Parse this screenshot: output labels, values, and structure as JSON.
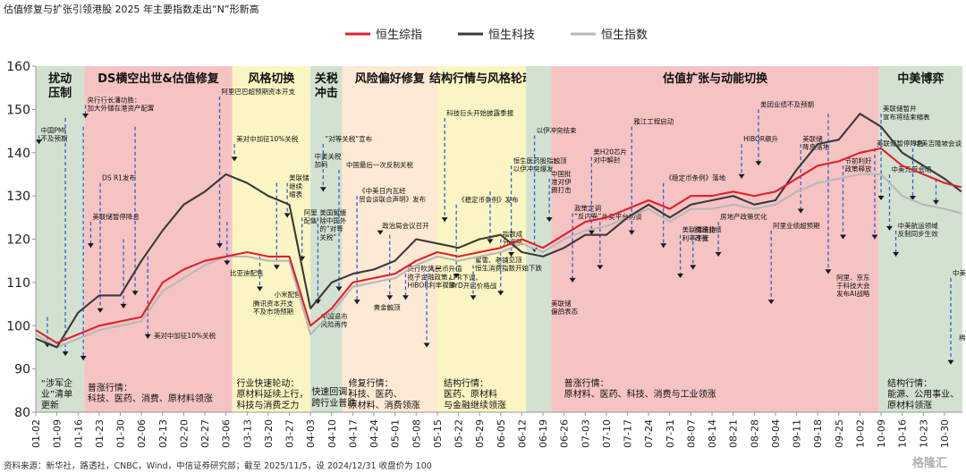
{
  "title": "估值修复与扩张引领港股 2025 年主要指数走出“N”形新高",
  "source": "资料来源：新华社，路透社，CNBC，Wind，中信证券研究部；截至 2025/11/5，设 2024/12/31 收盘价为 100",
  "watermark": "格隆汇",
  "chart_data": {
    "type": "line",
    "ylim": [
      80,
      160
    ],
    "yticks": [
      80,
      90,
      100,
      110,
      120,
      130,
      140,
      150,
      160
    ],
    "xtick_labels": [
      "01-02",
      "01-09",
      "01-16",
      "01-23",
      "01-30",
      "02-06",
      "02-13",
      "02-20",
      "02-27",
      "03-06",
      "03-13",
      "03-20",
      "03-27",
      "04-03",
      "04-10",
      "04-17",
      "04-24",
      "05-01",
      "05-08",
      "05-15",
      "05-22",
      "05-29",
      "06-05",
      "06-12",
      "06-19",
      "06-26",
      "07-03",
      "07-10",
      "07-17",
      "07-24",
      "07-31",
      "08-07",
      "08-14",
      "08-21",
      "08-28",
      "09-04",
      "09-11",
      "09-18",
      "09-25",
      "10-02",
      "10-09",
      "10-16",
      "10-23",
      "10-30"
    ],
    "x_range": [
      0,
      43.85
    ],
    "series": [
      {
        "name": "恒生综指",
        "color": "#e02030",
        "x": [
          0,
          1,
          2,
          3,
          4,
          5,
          6,
          7,
          8,
          9,
          10,
          11,
          12,
          13,
          14,
          15,
          16,
          17,
          18,
          19,
          20,
          21,
          22,
          23,
          24,
          25,
          26,
          27,
          28,
          29,
          30,
          31,
          32,
          33,
          34,
          35,
          36,
          37,
          38,
          39,
          40,
          41,
          42,
          43,
          43.8
        ],
        "values": [
          99,
          96,
          98,
          100,
          101,
          102,
          110,
          113,
          115,
          116,
          117,
          116,
          116,
          100,
          104,
          110,
          111,
          112,
          115,
          117,
          116,
          117,
          118,
          120,
          118,
          121,
          124,
          125,
          127,
          129,
          127,
          130,
          130,
          131,
          130,
          131,
          134,
          137,
          138,
          140,
          141,
          137,
          135,
          133,
          132
        ]
      },
      {
        "name": "恒生科技",
        "color": "#3a3a3a",
        "x": [
          0,
          1,
          2,
          3,
          4,
          5,
          6,
          7,
          8,
          9,
          10,
          11,
          12,
          13,
          14,
          15,
          16,
          17,
          18,
          19,
          20,
          21,
          22,
          23,
          24,
          25,
          26,
          27,
          28,
          29,
          30,
          31,
          32,
          33,
          34,
          35,
          36,
          37,
          38,
          39,
          40,
          41,
          42,
          43,
          43.8
        ],
        "values": [
          97,
          95,
          103,
          107,
          107,
          115,
          122,
          128,
          131,
          135,
          133,
          130,
          128,
          104,
          110,
          112,
          113,
          115,
          120,
          119,
          118,
          120,
          121,
          117,
          116,
          118,
          121,
          121,
          125,
          128,
          125,
          128,
          129,
          130,
          128,
          129,
          136,
          142,
          143,
          149,
          146,
          140,
          137,
          134,
          131
        ]
      },
      {
        "name": "恒生指数",
        "color": "#b8b8b8",
        "x": [
          0,
          1,
          2,
          3,
          4,
          5,
          6,
          7,
          8,
          9,
          10,
          11,
          12,
          13,
          14,
          15,
          16,
          17,
          18,
          19,
          20,
          21,
          22,
          23,
          24,
          25,
          26,
          27,
          28,
          29,
          30,
          31,
          32,
          33,
          34,
          35,
          36,
          37,
          38,
          39,
          40,
          41,
          42,
          43,
          43.8
        ],
        "values": [
          98,
          95,
          97,
          99,
          100,
          101,
          108,
          111,
          114,
          116,
          116,
          115,
          115,
          98,
          103,
          109,
          110,
          111,
          114,
          116,
          115,
          116,
          117,
          119,
          117,
          120,
          122,
          123,
          125,
          127,
          124,
          127,
          127,
          128,
          127,
          128,
          131,
          133,
          134,
          135,
          135,
          130,
          128,
          127,
          126
        ]
      }
    ],
    "phases": [
      {
        "label": "扰动\n压制",
        "start": 0,
        "end": 2.3,
        "color": "#d3e2d0"
      },
      {
        "label": "DS横空出世&估值修复",
        "start": 2.3,
        "end": 9.3,
        "color": "#f6c3c3"
      },
      {
        "label": "风格切换",
        "start": 9.3,
        "end": 13.0,
        "color": "#fbf5c3"
      },
      {
        "label": "关税\n冲击",
        "start": 13.0,
        "end": 14.5,
        "color": "#d3e2d0"
      },
      {
        "label": "风险偏好修复",
        "start": 14.5,
        "end": 19.0,
        "color": "#fde9d4"
      },
      {
        "label": "结构行情与风格轮动",
        "start": 19.0,
        "end": 23.2,
        "color": "#fbf5c3"
      },
      {
        "label": "",
        "start": 23.2,
        "end": 24.4,
        "color": "#d3e2d0"
      },
      {
        "label": "估值扩张与动能切换",
        "start": 24.4,
        "end": 39.9,
        "color": "#f6c3c3"
      },
      {
        "label": "中美博弈",
        "start": 39.9,
        "end": 43.85,
        "color": "#d3e2d0"
      }
    ],
    "events": [
      {
        "x": 0.15,
        "y0": 142,
        "y1": 144,
        "text": "中国PMI\n不及预期"
      },
      {
        "x": 0.55,
        "y0": 95,
        "y1": 102,
        "text": ""
      },
      {
        "x": 1.4,
        "y0": 93,
        "y1": 148,
        "text": ""
      },
      {
        "x": 2.25,
        "y0": 92,
        "y1": 146,
        "text": ""
      },
      {
        "x": 2.35,
        "y0": 148,
        "y1": 151,
        "text": "央行行长潘功胜：\n加大外储在港资产配置"
      },
      {
        "x": 3.05,
        "y0": 103,
        "y1": 133,
        "text": "DS R1发布"
      },
      {
        "x": 2.6,
        "y0": 118,
        "y1": 124,
        "text": "美联储暂停降息"
      },
      {
        "x": 4.15,
        "y0": 104,
        "y1": 120,
        "text": ""
      },
      {
        "x": 4.7,
        "y0": 107,
        "y1": 146,
        "text": ""
      },
      {
        "x": 5.3,
        "y0": 97,
        "y1": 116,
        "text": ""
      },
      {
        "x": 5.5,
        "y0": 96.5,
        "y1": 96.5,
        "text": "美对中加征10%关税"
      },
      {
        "x": 8.7,
        "y0": 118,
        "y1": 153,
        "text": "阿里巴巴超预期资本开支"
      },
      {
        "x": 9.05,
        "y0": 114,
        "y1": 124,
        "text": ""
      },
      {
        "x": 9.1,
        "y0": 111,
        "y1": 111,
        "text": "比亚迪配售"
      },
      {
        "x": 9.4,
        "y0": 138,
        "y1": 142,
        "text": "美对中加征10%关税"
      },
      {
        "x": 10.6,
        "y0": 108,
        "y1": 116,
        "text": ""
      },
      {
        "x": 10.2,
        "y0": 104,
        "y1": 104,
        "text": "腾讯资本开支\n不及市场预期"
      },
      {
        "x": 11.4,
        "y0": 113,
        "y1": 133,
        "text": ""
      },
      {
        "x": 11.2,
        "y0": 106,
        "y1": 106,
        "text": "小米配售"
      },
      {
        "x": 11.9,
        "y0": 125,
        "y1": 133,
        "text": "美联储\n继续\n缩表"
      },
      {
        "x": 12.6,
        "y0": 115,
        "y1": 125,
        "text": "阿里\n配售"
      },
      {
        "x": 13.6,
        "y0": 131,
        "y1": 142,
        "text": "“对等关税”宣布"
      },
      {
        "x": 13.35,
        "y0": 105,
        "y1": 125,
        "text": "美国暂缓\n除中国外\n的“对等\n关税”"
      },
      {
        "x": 13.1,
        "y0": 138,
        "y1": 138,
        "text": "中美关税\n加码"
      },
      {
        "x": 13.4,
        "y0": 101,
        "y1": 101,
        "text": "中国退市\n风险再传"
      },
      {
        "x": 14.35,
        "y0": 108,
        "y1": 136,
        "text": ""
      },
      {
        "x": 14.6,
        "y0": 136,
        "y1": 136,
        "text": "中国最后一次反制关税"
      },
      {
        "x": 15.2,
        "y0": 105,
        "y1": 130,
        "text": "《中美日内瓦经\n贸会谈联合声明》发布"
      },
      {
        "x": 16.3,
        "y0": 121,
        "y1": 122,
        "text": "政治局会议召开"
      },
      {
        "x": 16.75,
        "y0": 106,
        "y1": 121,
        "text": ""
      },
      {
        "x": 15.9,
        "y0": 103,
        "y1": 103,
        "text": "黄金触顶"
      },
      {
        "x": 17.5,
        "y0": 106,
        "y1": 112,
        "text": "央行吹风一\n揽子金融政策，\nHIBOR利率骤降"
      },
      {
        "x": 18.5,
        "y0": 95,
        "y1": 112,
        "text": "人民币升值"
      },
      {
        "x": 19.35,
        "y0": 124,
        "y1": 148,
        "text": "科技巨头开始披露季报"
      },
      {
        "x": 19.9,
        "y0": 111,
        "y1": 128,
        "text": "《稳定币条例》发布"
      },
      {
        "x": 19.5,
        "y0": 110,
        "y1": 110,
        "text": "LPR下调、\nBYD开启价格战"
      },
      {
        "x": 20.7,
        "y0": 106,
        "y1": 114,
        "text": "蜜雪、老铺见顶\n恒生消费指数开始下跌"
      },
      {
        "x": 21.5,
        "y0": 119,
        "y1": 131,
        "text": ""
      },
      {
        "x": 22.5,
        "y0": 116,
        "y1": 137,
        "text": "恒生医药股指触顶\n以伊冲突爆发"
      },
      {
        "x": 22.0,
        "y0": 107,
        "y1": 120,
        "text": "指数成\n分调整"
      },
      {
        "x": 23.6,
        "y0": 117,
        "y1": 144,
        "text": "以伊冲突结束"
      },
      {
        "x": 24.3,
        "y0": 124,
        "y1": 134,
        "text": "中国批\n准对伊\n朗打击"
      },
      {
        "x": 24.3,
        "y0": 104,
        "y1": 104,
        "text": "美联储\n偏鸽表态"
      },
      {
        "x": 25.4,
        "y0": 110,
        "y1": 126,
        "text": "政策定调\n“反内卷”"
      },
      {
        "x": 26.3,
        "y0": 121,
        "y1": 139,
        "text": "美H20芯片\n对中解封"
      },
      {
        "x": 26.7,
        "y0": 113,
        "y1": 124,
        "text": "外卖平台约谈"
      },
      {
        "x": 28.2,
        "y0": 121,
        "y1": 146,
        "text": "雅江工程启动"
      },
      {
        "x": 29.7,
        "y0": 118,
        "y1": 133,
        "text": "《稳定币条例》落地"
      },
      {
        "x": 30.5,
        "y0": 111,
        "y1": 121,
        "text": "美联储维持\n利率不变"
      },
      {
        "x": 31.1,
        "y0": 113,
        "y1": 121,
        "text": "腾讯业绩\n改善"
      },
      {
        "x": 32.3,
        "y0": 116,
        "y1": 124,
        "text": "房地产政策优化"
      },
      {
        "x": 33.4,
        "y0": 134,
        "y1": 142,
        "text": "HIBOR飙升"
      },
      {
        "x": 34.2,
        "y0": 137,
        "y1": 150,
        "text": "美团业绩不及预期"
      },
      {
        "x": 34.8,
        "y0": 105,
        "y1": 122,
        "text": "阿里业绩超预期"
      },
      {
        "x": 36.2,
        "y0": 126,
        "y1": 142,
        "text": "美联储\n降息落地"
      },
      {
        "x": 37.5,
        "y0": 112,
        "y1": 149,
        "text": ""
      },
      {
        "x": 37.8,
        "y0": 110,
        "y1": 110,
        "text": "阿里、京东\n于科技大会\n发布AI战略"
      },
      {
        "x": 38.2,
        "y0": 120,
        "y1": 137,
        "text": "节前利好\n政策释放"
      },
      {
        "x": 39.7,
        "y0": 120,
        "y1": 141,
        "text": "美联储暂停降息"
      },
      {
        "x": 40.0,
        "y0": 129,
        "y1": 149,
        "text": "美联储暂并\n宣布将结束缩表"
      },
      {
        "x": 40.4,
        "y0": 122,
        "y1": 135,
        "text": "中美元首会晤"
      },
      {
        "x": 40.7,
        "y0": 116,
        "y1": 122,
        "text": "中美航运领域\n反制同步生效"
      },
      {
        "x": 41.5,
        "y0": 129,
        "y1": 141,
        "text": "中美吉隆坡会谈"
      },
      {
        "x": 42.6,
        "y0": 128,
        "y1": 134,
        "text": ""
      },
      {
        "x": 43.3,
        "y0": 91,
        "y1": 111,
        "text": "中美同步调整关税"
      },
      {
        "x": 43.6,
        "y0": 96,
        "y1": 96,
        "text": "稀土管制与关税再燃"
      }
    ],
    "bottom_notes": [
      {
        "x": 0.25,
        "y": 86,
        "text": "“涉军企\n业”清单\n更新"
      },
      {
        "x": 2.45,
        "y": 85,
        "text": "普涨行情：\n科技、医药、消费、原材料领涨"
      },
      {
        "x": 9.5,
        "y": 86,
        "text": "行业快速轮动：\n原材料延续上行，\n科技与消费乏力"
      },
      {
        "x": 13.05,
        "y": 84,
        "text": "快速回调：\n跨行业普跌"
      },
      {
        "x": 14.8,
        "y": 86,
        "text": "修复行情：\n科技、医药、\n原材料、消费领涨"
      },
      {
        "x": 19.3,
        "y": 86,
        "text": "结构行情：\n医药、原材料\n与金融继续领涨"
      },
      {
        "x": 25.0,
        "y": 86,
        "text": "普涨行情：\n原材料、医药、科技、消费与工业领涨"
      },
      {
        "x": 40.3,
        "y": 86,
        "text": "结构行情：\n能源、公用事业、\n原材料领涨"
      }
    ]
  }
}
